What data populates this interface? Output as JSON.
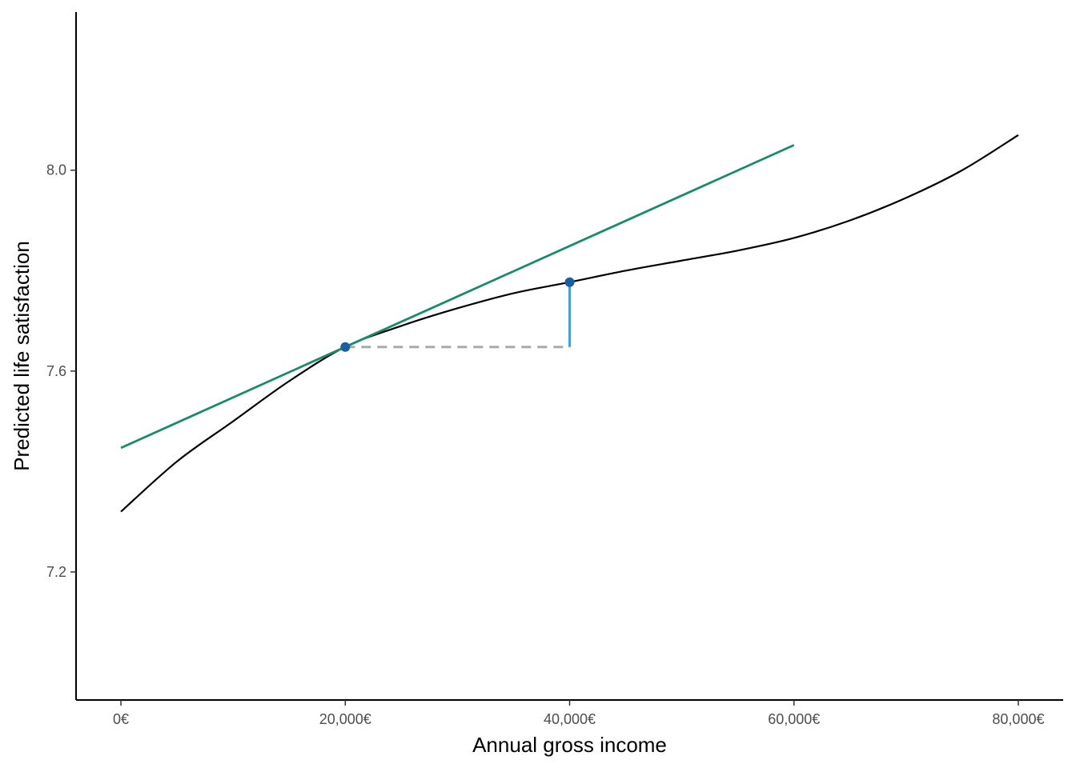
{
  "chart_data": {
    "type": "line",
    "xlabel": "Annual gross income",
    "ylabel": "Predicted life satisfaction",
    "xlim": [
      -4000,
      84000
    ],
    "ylim": [
      6.945,
      8.315
    ],
    "x_ticks": [
      0,
      20000,
      40000,
      60000,
      80000
    ],
    "x_tick_labels": [
      "0€",
      "20,000€",
      "40,000€",
      "60,000€",
      "80,000€"
    ],
    "y_ticks": [
      7.2,
      7.6,
      8.0
    ],
    "y_tick_labels": [
      "7.2",
      "7.6",
      "8.0"
    ],
    "grid": false,
    "series": [
      {
        "role": "fitted-curve",
        "color": "#000000",
        "x": [
          0,
          5000,
          10000,
          15000,
          20000,
          25000,
          30000,
          35000,
          40000,
          45000,
          50000,
          55000,
          60000,
          65000,
          70000,
          75000,
          80000
        ],
        "y": [
          7.32,
          7.42,
          7.5,
          7.58,
          7.648,
          7.69,
          7.725,
          7.755,
          7.777,
          7.8,
          7.82,
          7.84,
          7.865,
          7.9,
          7.945,
          8.0,
          8.07
        ]
      },
      {
        "role": "tangent-line",
        "color": "#1b8a6b",
        "x": [
          0,
          60000
        ],
        "y": [
          7.447,
          8.05
        ]
      }
    ],
    "points": [
      {
        "x": 20000,
        "y": 7.648,
        "color": "#1c5fa0"
      },
      {
        "x": 40000,
        "y": 7.777,
        "color": "#1c5fa0"
      }
    ],
    "segments": [
      {
        "role": "horizontal-run",
        "style": "dashed",
        "color": "#a9a9a9",
        "x": [
          20000,
          40000
        ],
        "y": [
          7.648,
          7.648
        ]
      },
      {
        "role": "vertical-rise",
        "style": "solid",
        "color": "#4a9ed8",
        "x": [
          40000,
          40000
        ],
        "y": [
          7.648,
          7.777
        ]
      }
    ]
  }
}
